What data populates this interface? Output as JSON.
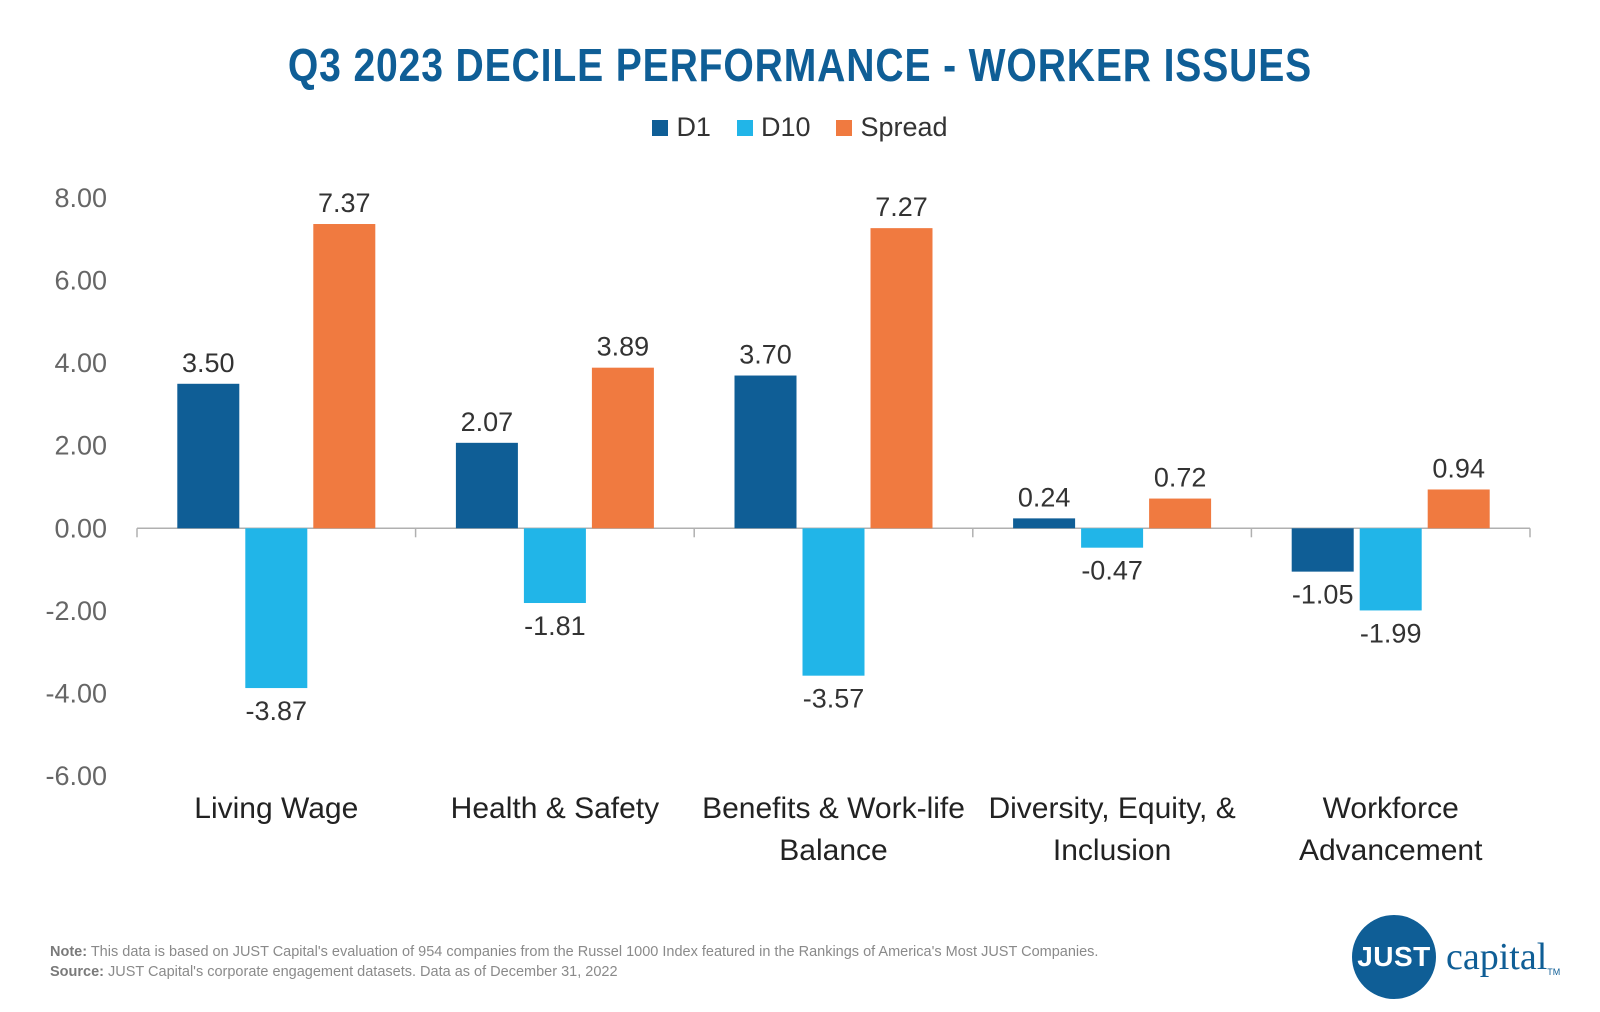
{
  "chart_data": {
    "type": "bar",
    "title": "Q3 2023 DECILE PERFORMANCE - WORKER ISSUES",
    "categories": [
      [
        "Living Wage"
      ],
      [
        "Health & Safety"
      ],
      [
        "Benefits & Work-life",
        "Balance"
      ],
      [
        "Diversity, Equity, &",
        "Inclusion"
      ],
      [
        "Workforce",
        "Advancement"
      ]
    ],
    "series": [
      {
        "name": "D1",
        "color": "#0f5e96",
        "values": [
          3.5,
          2.07,
          3.7,
          0.24,
          -1.05
        ],
        "labels": [
          "3.50",
          "2.07",
          "3.70",
          "0.24",
          "-1.05"
        ]
      },
      {
        "name": "D10",
        "color": "#21b5e8",
        "values": [
          -3.87,
          -1.81,
          -3.57,
          -0.47,
          -1.99
        ],
        "labels": [
          "-3.87",
          "-1.81",
          "-3.57",
          "-0.47",
          "-1.99"
        ]
      },
      {
        "name": "Spread",
        "color": "#f07a40",
        "values": [
          7.37,
          3.89,
          7.27,
          0.72,
          0.94
        ],
        "labels": [
          "7.37",
          "3.89",
          "7.27",
          "0.72",
          "0.94"
        ]
      }
    ],
    "ylim": [
      -6,
      8
    ],
    "yticks": [
      "8.00",
      "6.00",
      "4.00",
      "2.00",
      "0.00",
      "-2.00",
      "-4.00",
      "-6.00"
    ],
    "ytick_values": [
      8,
      6,
      4,
      2,
      0,
      -2,
      -4,
      -6
    ],
    "grid": false,
    "legend": "top-center"
  },
  "footnote": {
    "note_label": "Note:",
    "note_text": " This data is based on JUST Capital's evaluation of 954 companies from the Russel 1000 Index featured in the Rankings of America's Most JUST Companies.",
    "source_label": "Source:",
    "source_text": " JUST Capital's corporate engagement datasets. Data as of December 31, 2022"
  },
  "logo": {
    "mark": "JUST",
    "word": "capital",
    "tm": "TM"
  }
}
